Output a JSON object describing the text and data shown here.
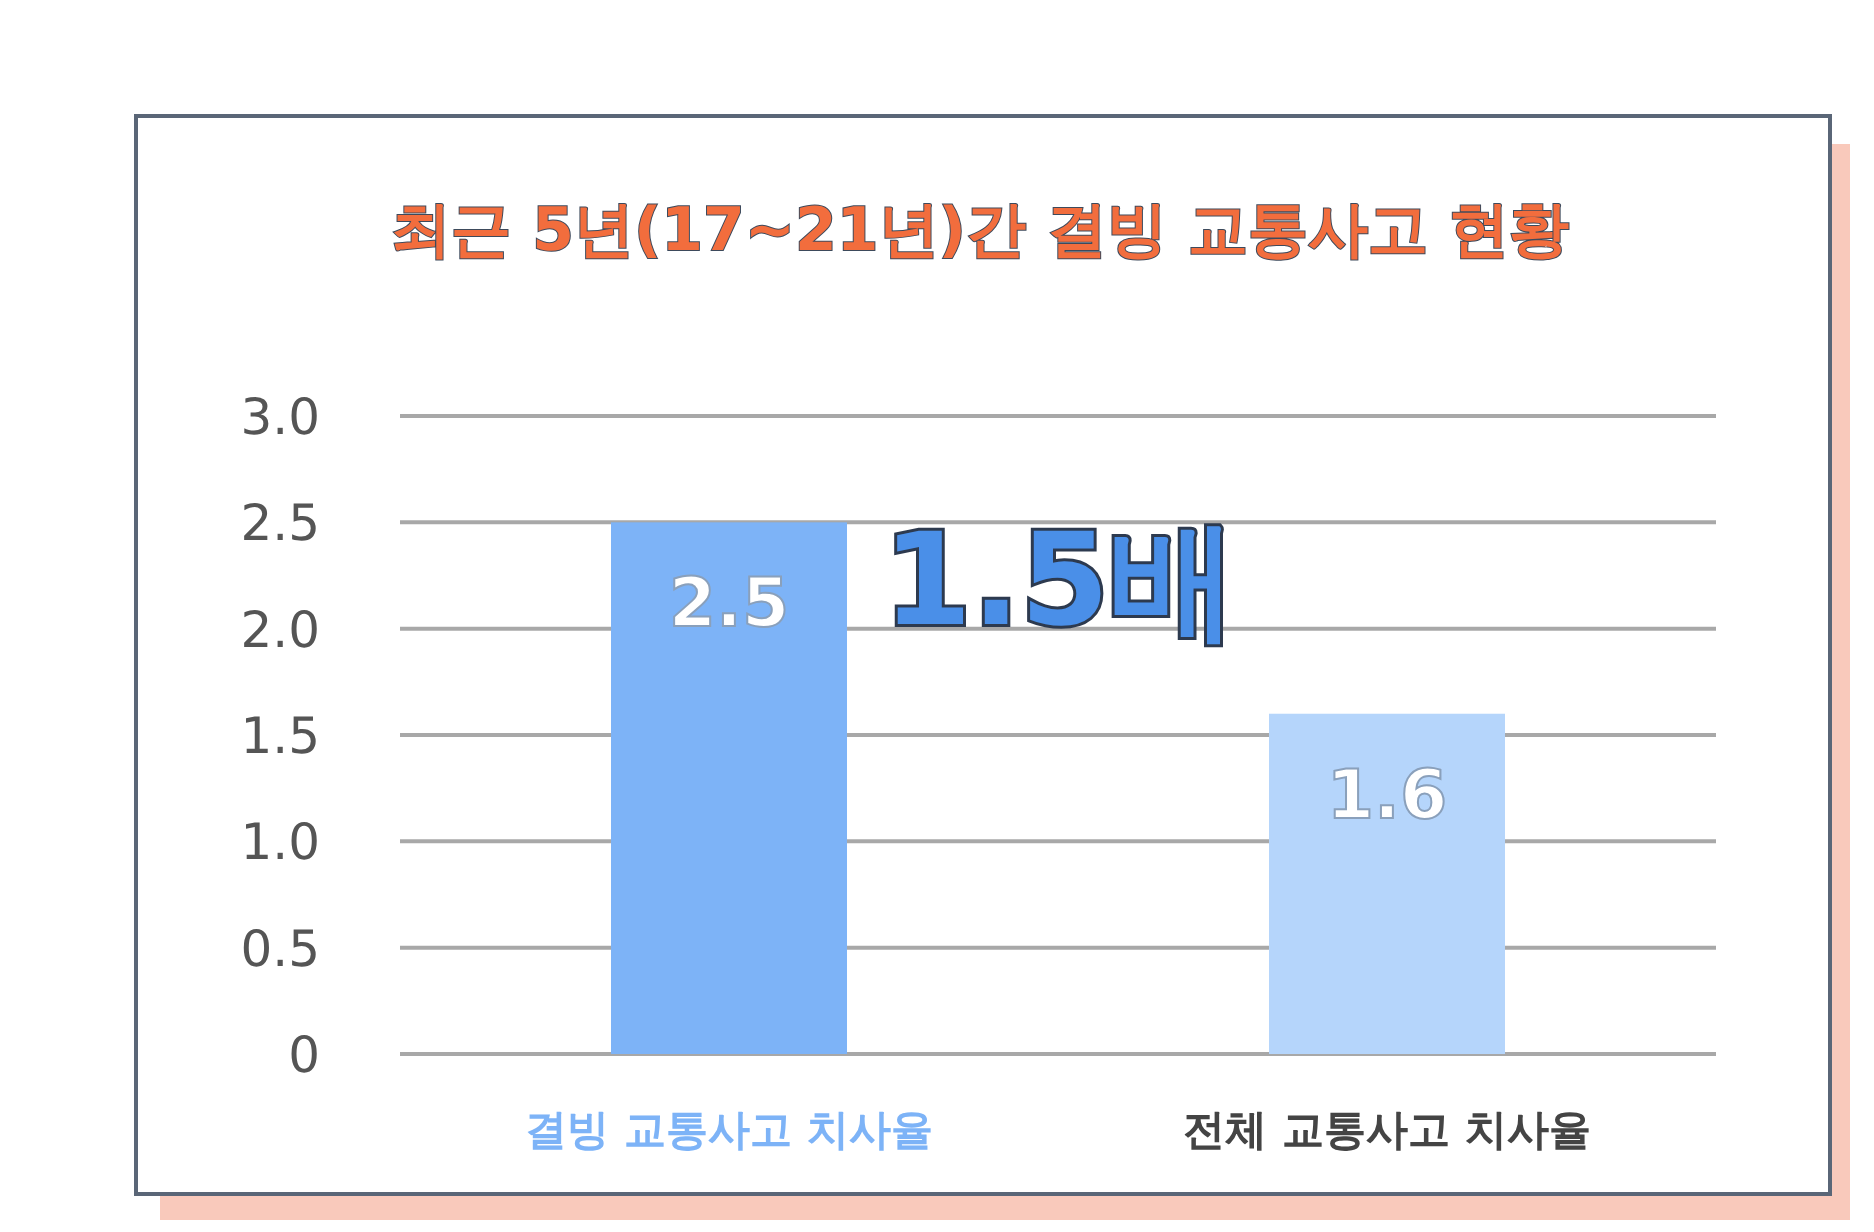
{
  "chart_data": {
    "type": "bar",
    "title": "최근 5년(17~21년)간 결빙 교통사고 현황",
    "categories": [
      "결빙 교통사고 치사율",
      "전체 교통사고 치사율"
    ],
    "values": [
      2.5,
      1.6
    ],
    "colors": [
      "#7db3f7",
      "#b5d5fb"
    ],
    "ylim": [
      0,
      3
    ],
    "yticks": [
      0,
      {
        "value": 0.5,
        "label": "0.5"
      },
      {
        "value": 1,
        "label": "1.0"
      },
      {
        "value": 1.5,
        "label": "1.5"
      },
      {
        "value": 2,
        "label": "2.0"
      },
      {
        "value": 2.5,
        "label": "2.5"
      },
      {
        "value": 3,
        "label": "3.0"
      }
    ],
    "grid": "y",
    "data_labels": true,
    "annotations": [
      "1.5배"
    ]
  }
}
